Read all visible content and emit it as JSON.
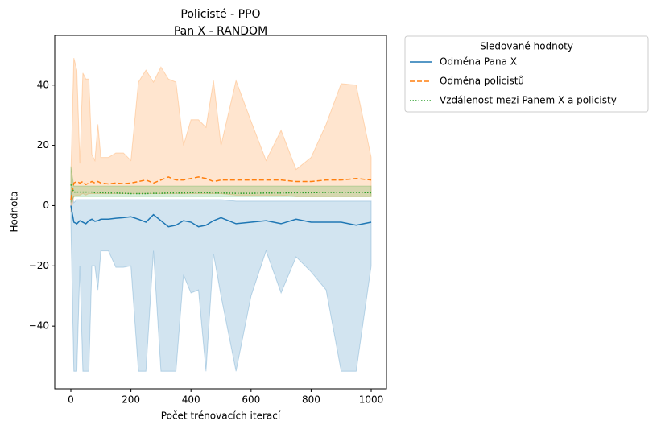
{
  "chart_data": {
    "type": "line",
    "title": "Policisté - PPO",
    "subtitle": "Pan X - RANDOM",
    "x_label": "Počet trénovacích iterací",
    "y_label": "Hodnota",
    "legend_title": "Sledované hodnoty",
    "legend_position": "outside-upper-right",
    "x": [
      0,
      10,
      20,
      30,
      40,
      50,
      60,
      70,
      80,
      90,
      100,
      125,
      150,
      175,
      200,
      225,
      250,
      275,
      300,
      325,
      350,
      375,
      400,
      425,
      450,
      475,
      500,
      550,
      600,
      650,
      700,
      750,
      800,
      850,
      900,
      950,
      1000
    ],
    "xlim": [
      -53.6,
      1050.9
    ],
    "ylim": [
      -60.8,
      56.5
    ],
    "xticks": [
      0,
      200,
      400,
      600,
      800,
      1000
    ],
    "yticks": [
      {
        "value": -40,
        "label": "−40"
      },
      {
        "value": -20,
        "label": "−20"
      },
      0,
      20,
      40
    ],
    "series": [
      {
        "name": "Odměna Pana X",
        "color": "#1f77b4",
        "dash": "solid",
        "values": [
          0,
          -5.5,
          -6,
          -5,
          -5.5,
          -6,
          -5,
          -4.5,
          -5.2,
          -5,
          -4.5,
          -4.5,
          -4.2,
          -4,
          -3.7,
          -4.5,
          -5.5,
          -3,
          -5,
          -7,
          -6.5,
          -5,
          -5.5,
          -7,
          -6.5,
          -5,
          -4,
          -6,
          -5.5,
          -5,
          -6,
          -4.5,
          -5.5,
          -5.5,
          -5.5,
          -6.5,
          -5.5
        ],
        "lower": [
          -5,
          -55,
          -55,
          -20,
          -55,
          -55,
          -55,
          -20,
          -20,
          -28,
          -15,
          -15,
          -20.5,
          -20.5,
          -20,
          -55,
          -55,
          -15,
          -55,
          -55,
          -55,
          -23,
          -29,
          -28,
          -55,
          -16,
          -30,
          -55,
          -30,
          -15,
          -29,
          -17,
          -22,
          -28,
          -55,
          -55,
          -20
        ],
        "upper": [
          5,
          1,
          2,
          2,
          2,
          2,
          2,
          2,
          2,
          2,
          2,
          2,
          2,
          2,
          2,
          2,
          2,
          2,
          2,
          2,
          2,
          2,
          2,
          2,
          2,
          2,
          2,
          1.5,
          1.5,
          1.5,
          1.5,
          1.5,
          1.5,
          1.5,
          1.5,
          1.5,
          1.5
        ]
      },
      {
        "name": "Odměna policistů",
        "color": "#ff7f0e",
        "dash": "dashed",
        "values": [
          2,
          7.5,
          8,
          7.5,
          8,
          7,
          7.5,
          8,
          7.5,
          8,
          7.5,
          7.2,
          7.5,
          7.3,
          7.5,
          8,
          8.5,
          7.5,
          8.5,
          9.5,
          8.5,
          8.5,
          9,
          9.5,
          9,
          8,
          8.5,
          8.5,
          8.5,
          8.5,
          8.5,
          8,
          8,
          8.5,
          8.5,
          9,
          8.5
        ],
        "lower": [
          -2,
          3,
          3.5,
          3.5,
          4,
          3.5,
          4,
          4,
          4,
          4,
          4,
          4,
          4,
          4,
          4,
          4,
          4,
          4,
          4,
          4,
          4,
          4,
          4,
          4,
          4,
          4,
          4,
          3.5,
          3.5,
          3.5,
          3.5,
          3,
          3,
          3,
          3,
          3,
          3
        ],
        "upper": [
          10,
          49,
          45,
          14,
          44,
          42,
          42,
          17,
          15,
          27,
          16,
          16,
          17.5,
          17.5,
          15,
          41,
          45,
          41,
          46,
          42,
          41,
          20,
          28.5,
          28.5,
          26,
          41.5,
          20,
          41.5,
          28,
          15,
          25,
          12,
          16,
          27,
          40.5,
          40,
          16
        ]
      },
      {
        "name": "Vzdálenost mezi Panem X a policisty",
        "color": "#2ca02c",
        "dash": "dotted",
        "values": [
          7,
          4.5,
          4.5,
          4.5,
          4.5,
          4.5,
          4.5,
          4.5,
          4.3,
          4.3,
          4.3,
          4.2,
          4.2,
          4.1,
          4,
          4,
          4,
          4.1,
          4.1,
          4.2,
          4.2,
          4.2,
          4.3,
          4.3,
          4.3,
          4.2,
          4.2,
          4.1,
          4.1,
          4.2,
          4.2,
          4.3,
          4.3,
          4.4,
          4.4,
          4.4,
          4.3
        ],
        "lower": [
          1,
          3,
          3,
          3,
          3,
          3,
          3,
          3,
          3,
          3,
          3,
          3,
          3,
          3,
          3,
          3,
          3,
          3,
          3,
          3,
          3,
          3,
          3,
          3,
          3,
          3,
          3,
          3,
          3,
          3,
          3,
          3,
          3,
          3,
          3,
          3,
          3
        ],
        "upper": [
          13,
          6.5,
          6.5,
          6.5,
          6.5,
          6.5,
          6.5,
          6.5,
          6.5,
          6.5,
          6.5,
          6.5,
          6.5,
          6.5,
          6.5,
          6.5,
          6.5,
          6.5,
          6.5,
          6.5,
          6.5,
          6.5,
          6.5,
          6.5,
          6.5,
          6.5,
          6.5,
          6.5,
          6.5,
          6.5,
          6.5,
          6.5,
          6.5,
          6.5,
          6.5,
          6.5,
          6.5
        ]
      }
    ]
  }
}
